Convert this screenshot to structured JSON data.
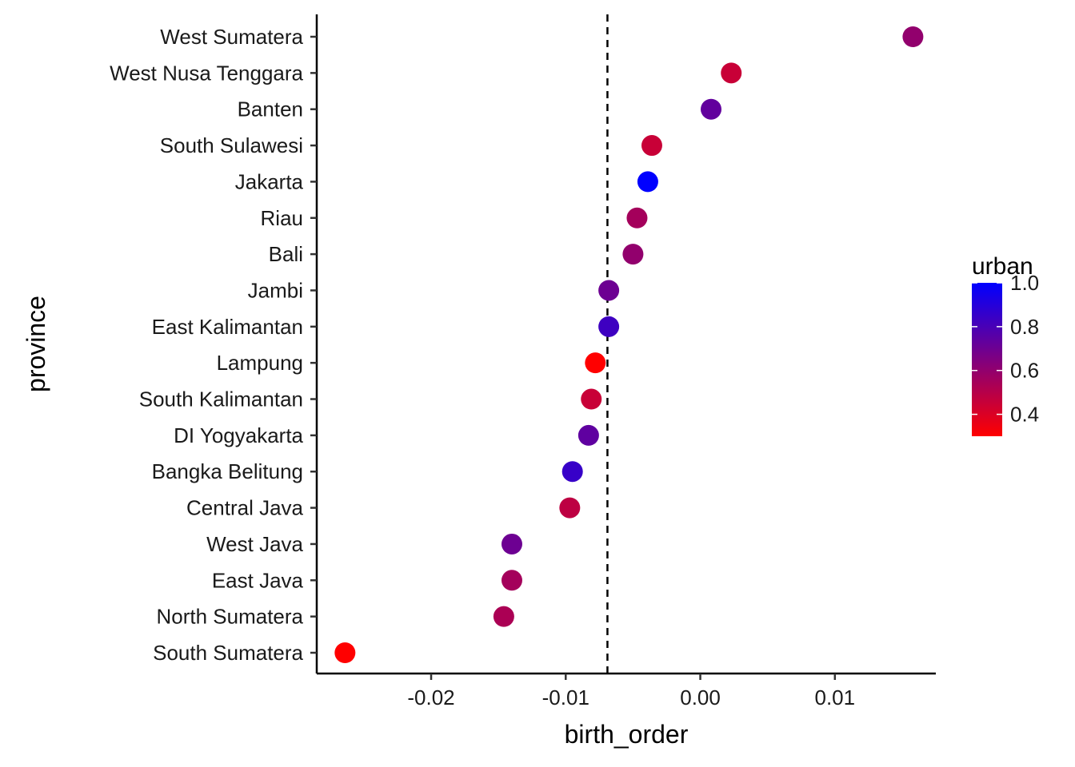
{
  "chart_data": {
    "type": "scatter",
    "xlabel": "birth_order",
    "ylabel": "province",
    "xlim": [
      -0.0285,
      0.0175
    ],
    "x_ticks": [
      -0.02,
      -0.01,
      0.0,
      0.01
    ],
    "x_tick_labels": [
      "-0.02",
      "-0.01",
      "0.00",
      "0.01"
    ],
    "reference_line": {
      "x": -0.0069,
      "style": "dashed"
    },
    "categories": [
      "South Sumatera",
      "North Sumatera",
      "East Java",
      "West Java",
      "Central Java",
      "Bangka Belitung",
      "DI Yogyakarta",
      "South Kalimantan",
      "Lampung",
      "East Kalimantan",
      "Jambi",
      "Bali",
      "Riau",
      "Jakarta",
      "South Sulawesi",
      "Banten",
      "West Nusa Tenggara",
      "West Sumatera"
    ],
    "points": [
      {
        "province": "South Sumatera",
        "birth_order": -0.0264,
        "urban": 0.3
      },
      {
        "province": "North Sumatera",
        "birth_order": -0.0146,
        "urban": 0.53
      },
      {
        "province": "East Java",
        "birth_order": -0.014,
        "urban": 0.55
      },
      {
        "province": "West Java",
        "birth_order": -0.014,
        "urban": 0.7
      },
      {
        "province": "Central Java",
        "birth_order": -0.0097,
        "urban": 0.48
      },
      {
        "province": "Bangka Belitung",
        "birth_order": -0.0095,
        "urban": 0.85
      },
      {
        "province": "DI Yogyakarta",
        "birth_order": -0.0083,
        "urban": 0.74
      },
      {
        "province": "South Kalimantan",
        "birth_order": -0.0081,
        "urban": 0.45
      },
      {
        "province": "Lampung",
        "birth_order": -0.0078,
        "urban": 0.3
      },
      {
        "province": "East Kalimantan",
        "birth_order": -0.0068,
        "urban": 0.83
      },
      {
        "province": "Jambi",
        "birth_order": -0.0068,
        "urban": 0.7
      },
      {
        "province": "Bali",
        "birth_order": -0.005,
        "urban": 0.6
      },
      {
        "province": "Riau",
        "birth_order": -0.0047,
        "urban": 0.55
      },
      {
        "province": "Jakarta",
        "birth_order": -0.0039,
        "urban": 1.0
      },
      {
        "province": "South Sulawesi",
        "birth_order": -0.0036,
        "urban": 0.45
      },
      {
        "province": "Banten",
        "birth_order": 0.0008,
        "urban": 0.73
      },
      {
        "province": "West Nusa Tenggara",
        "birth_order": 0.0023,
        "urban": 0.45
      },
      {
        "province": "West Sumatera",
        "birth_order": 0.0158,
        "urban": 0.6
      }
    ],
    "legend": {
      "title": "urban",
      "position": "right",
      "min": 0.3,
      "max": 1.0,
      "ticks": [
        1.0,
        0.8,
        0.6,
        0.4
      ],
      "tick_labels": [
        "1.0",
        "0.8",
        "0.6",
        "0.4"
      ],
      "low_color": "#ff0000",
      "high_color": "#0000ff"
    },
    "grid": false
  }
}
